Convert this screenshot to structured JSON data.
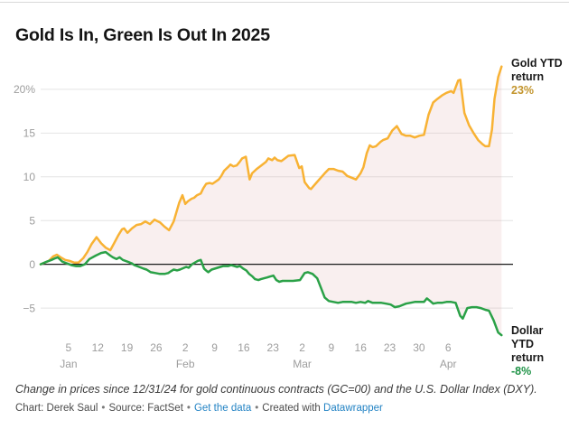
{
  "title": "Gold Is In, Green Is Out In 2025",
  "notes": "Change in prices since 12/31/24 for gold continuous contracts (GC=00) and the U.S. Dollar Index (DXY).",
  "byline": {
    "chart_credit": "Chart: Derek Saul",
    "source_credit": "Source: FactSet",
    "data_link": "Get the data",
    "created_with": "Created with",
    "tool_link": "Datawrapper",
    "separator": "•",
    "link_color": "#2383c4"
  },
  "chart_data": {
    "type": "line",
    "title": "Gold Is In, Green Is Out In 2025",
    "x_unit": "days since 12/31/24",
    "xlim": [
      0,
      112.6
    ],
    "ylim": [
      -8.4,
      23.4
    ],
    "grid": true,
    "colors": {
      "grid": "#e4e4e4",
      "zero_line": "#1a1a1a",
      "axis_text": "#9d9d9d",
      "fill_between": "rgba(221,164,164,0.18)"
    },
    "y_ticks": [
      {
        "v": 20,
        "label": "20%"
      },
      {
        "v": 15,
        "label": "15"
      },
      {
        "v": 10,
        "label": "10"
      },
      {
        "v": 5,
        "label": "5"
      },
      {
        "v": 0,
        "label": "0"
      },
      {
        "v": -5,
        "label": "−5"
      }
    ],
    "x_ticks": [
      {
        "d": 6.7,
        "day": "5",
        "month": "Jan"
      },
      {
        "d": 13.7,
        "day": "12"
      },
      {
        "d": 20.7,
        "day": "19"
      },
      {
        "d": 27.7,
        "day": "26"
      },
      {
        "d": 34.7,
        "day": "2",
        "month": "Feb"
      },
      {
        "d": 41.7,
        "day": "9"
      },
      {
        "d": 48.7,
        "day": "16"
      },
      {
        "d": 55.7,
        "day": "23"
      },
      {
        "d": 62.7,
        "day": "2",
        "month": "Mar"
      },
      {
        "d": 69.7,
        "day": "9"
      },
      {
        "d": 76.7,
        "day": "16"
      },
      {
        "d": 83.7,
        "day": "23"
      },
      {
        "d": 90.7,
        "day": "30"
      },
      {
        "d": 97.7,
        "day": "6",
        "month": "Apr"
      }
    ],
    "series": [
      {
        "name": "Gold YTD return",
        "end_label": "23%",
        "color": "#F8B234",
        "label_color": "#C2942C",
        "points": [
          [
            0,
            0
          ],
          [
            2,
            0.4
          ],
          [
            3,
            0.9
          ],
          [
            3.9,
            1.1
          ],
          [
            4.8,
            0.8
          ],
          [
            5.9,
            0.5
          ],
          [
            6.9,
            0.4
          ],
          [
            8,
            0.2
          ],
          [
            9.1,
            0.2
          ],
          [
            10.2,
            0.7
          ],
          [
            11.2,
            1.4
          ],
          [
            12.2,
            2.3
          ],
          [
            13.4,
            3.1
          ],
          [
            14.5,
            2.4
          ],
          [
            15.6,
            1.9
          ],
          [
            16.7,
            1.6
          ],
          [
            17.6,
            2.4
          ],
          [
            18.6,
            3.3
          ],
          [
            19.5,
            4
          ],
          [
            20,
            4.1
          ],
          [
            20.8,
            3.6
          ],
          [
            21.9,
            4.1
          ],
          [
            23,
            4.5
          ],
          [
            24.1,
            4.6
          ],
          [
            25.1,
            4.9
          ],
          [
            26.2,
            4.6
          ],
          [
            27.3,
            5.1
          ],
          [
            28.6,
            4.8
          ],
          [
            29.7,
            4.3
          ],
          [
            30.8,
            3.9
          ],
          [
            31.9,
            4.9
          ],
          [
            33.2,
            7
          ],
          [
            34,
            7.9
          ],
          [
            34.7,
            6.9
          ],
          [
            35.3,
            7.2
          ],
          [
            36.2,
            7.5
          ],
          [
            36.8,
            7.6
          ],
          [
            37.5,
            7.9
          ],
          [
            38.4,
            8.1
          ],
          [
            39,
            8.7
          ],
          [
            39.7,
            9.2
          ],
          [
            40.5,
            9.3
          ],
          [
            41.2,
            9.2
          ],
          [
            41.8,
            9.4
          ],
          [
            42.7,
            9.7
          ],
          [
            43.3,
            10.1
          ],
          [
            44,
            10.7
          ],
          [
            44.9,
            11.1
          ],
          [
            45.5,
            11.4
          ],
          [
            46.2,
            11.2
          ],
          [
            47,
            11.3
          ],
          [
            47.7,
            11.7
          ],
          [
            48.3,
            12.1
          ],
          [
            49.2,
            12.3
          ],
          [
            50.1,
            9.7
          ],
          [
            50.7,
            10.4
          ],
          [
            51.8,
            10.9
          ],
          [
            52.9,
            11.3
          ],
          [
            54,
            11.7
          ],
          [
            54.6,
            12.1
          ],
          [
            55.5,
            11.9
          ],
          [
            56.1,
            12.2
          ],
          [
            56.8,
            11.9
          ],
          [
            57.7,
            11.8
          ],
          [
            58.3,
            12
          ],
          [
            59.4,
            12.4
          ],
          [
            60.9,
            12.5
          ],
          [
            62,
            11
          ],
          [
            62.6,
            11.2
          ],
          [
            63.3,
            9.4
          ],
          [
            64.4,
            8.7
          ],
          [
            64.8,
            8.6
          ],
          [
            65.9,
            9.2
          ],
          [
            67,
            9.8
          ],
          [
            68.1,
            10.4
          ],
          [
            69.1,
            10.9
          ],
          [
            70.2,
            10.9
          ],
          [
            71.3,
            10.7
          ],
          [
            72.4,
            10.6
          ],
          [
            73.5,
            10.1
          ],
          [
            74.6,
            9.9
          ],
          [
            75.6,
            9.7
          ],
          [
            76.7,
            10.4
          ],
          [
            77.4,
            11.1
          ],
          [
            78.2,
            12.7
          ],
          [
            78.9,
            13.6
          ],
          [
            79.6,
            13.4
          ],
          [
            80.4,
            13.5
          ],
          [
            81.5,
            14
          ],
          [
            82.1,
            14.2
          ],
          [
            83.2,
            14.4
          ],
          [
            84.3,
            15.3
          ],
          [
            85.4,
            15.8
          ],
          [
            86.5,
            14.9
          ],
          [
            87.6,
            14.7
          ],
          [
            88.6,
            14.7
          ],
          [
            89.7,
            14.5
          ],
          [
            90.8,
            14.7
          ],
          [
            91.9,
            14.8
          ],
          [
            93,
            17.1
          ],
          [
            94.1,
            18.5
          ],
          [
            95.1,
            18.9
          ],
          [
            96.2,
            19.3
          ],
          [
            97.3,
            19.6
          ],
          [
            98.4,
            19.8
          ],
          [
            99,
            19.6
          ],
          [
            100.1,
            21
          ],
          [
            100.6,
            21.1
          ],
          [
            101.6,
            17.3
          ],
          [
            102.7,
            15.9
          ],
          [
            103.8,
            15
          ],
          [
            104.9,
            14.2
          ],
          [
            106,
            13.7
          ],
          [
            106.6,
            13.5
          ],
          [
            107.5,
            13.5
          ],
          [
            108.2,
            15.4
          ],
          [
            108.8,
            18.9
          ],
          [
            109.7,
            21.4
          ],
          [
            110.5,
            22.6
          ]
        ]
      },
      {
        "name": "Dollar YTD return",
        "end_label": "-8%",
        "color": "#2AA147",
        "label_color": "#1F9347",
        "points": [
          [
            0,
            0
          ],
          [
            1.5,
            0.3
          ],
          [
            2.6,
            0.5
          ],
          [
            3.5,
            0.7
          ],
          [
            4.1,
            0.8
          ],
          [
            5.2,
            0.3
          ],
          [
            6.3,
            0.1
          ],
          [
            7.4,
            -0.1
          ],
          [
            8.5,
            -0.2
          ],
          [
            9.5,
            -0.2
          ],
          [
            10.6,
            0
          ],
          [
            11.7,
            0.6
          ],
          [
            13.2,
            1
          ],
          [
            14.5,
            1.3
          ],
          [
            15.6,
            1.4
          ],
          [
            16.7,
            1
          ],
          [
            17.3,
            0.8
          ],
          [
            18.2,
            0.6
          ],
          [
            18.9,
            0.8
          ],
          [
            19.7,
            0.5
          ],
          [
            20.8,
            0.3
          ],
          [
            21.9,
            0.1
          ],
          [
            22.5,
            -0.1
          ],
          [
            23.6,
            -0.3
          ],
          [
            24.7,
            -0.5
          ],
          [
            25.4,
            -0.6
          ],
          [
            26.4,
            -0.9
          ],
          [
            27.5,
            -1
          ],
          [
            28.6,
            -1.1
          ],
          [
            29.7,
            -1.1
          ],
          [
            30.6,
            -1
          ],
          [
            31.2,
            -0.8
          ],
          [
            31.9,
            -0.6
          ],
          [
            32.7,
            -0.7
          ],
          [
            33.4,
            -0.6
          ],
          [
            34.9,
            -0.3
          ],
          [
            35.5,
            -0.4
          ],
          [
            36.3,
            0
          ],
          [
            37,
            0.2
          ],
          [
            37.7,
            0.4
          ],
          [
            38.4,
            0.5
          ],
          [
            39.2,
            -0.5
          ],
          [
            39.9,
            -0.8
          ],
          [
            40.2,
            -0.9
          ],
          [
            41,
            -0.6
          ],
          [
            41.7,
            -0.5
          ],
          [
            42.4,
            -0.4
          ],
          [
            43.1,
            -0.3
          ],
          [
            43.8,
            -0.2
          ],
          [
            45,
            -0.2
          ],
          [
            45.7,
            -0.1
          ],
          [
            46.4,
            -0.2
          ],
          [
            47.1,
            -0.3
          ],
          [
            47.8,
            -0.2
          ],
          [
            48.6,
            -0.5
          ],
          [
            49.3,
            -0.7
          ],
          [
            50,
            -1.1
          ],
          [
            50.8,
            -1.4
          ],
          [
            51.4,
            -1.7
          ],
          [
            52.2,
            -1.8
          ],
          [
            52.8,
            -1.7
          ],
          [
            53.6,
            -1.6
          ],
          [
            54.3,
            -1.5
          ],
          [
            55,
            -1.4
          ],
          [
            55.8,
            -1.3
          ],
          [
            56.5,
            -1.8
          ],
          [
            57.2,
            -2
          ],
          [
            58,
            -1.9
          ],
          [
            59.4,
            -1.9
          ],
          [
            60.5,
            -1.9
          ],
          [
            62.2,
            -1.8
          ],
          [
            63.3,
            -1
          ],
          [
            64.1,
            -0.9
          ],
          [
            65.2,
            -1.1
          ],
          [
            66.3,
            -1.6
          ],
          [
            67.3,
            -2.8
          ],
          [
            68.1,
            -3.8
          ],
          [
            69.1,
            -4.2
          ],
          [
            70.2,
            -4.3
          ],
          [
            71.3,
            -4.4
          ],
          [
            72.4,
            -4.3
          ],
          [
            73.5,
            -4.3
          ],
          [
            74.6,
            -4.3
          ],
          [
            75.6,
            -4.4
          ],
          [
            76.7,
            -4.3
          ],
          [
            77.8,
            -4.4
          ],
          [
            78.5,
            -4.2
          ],
          [
            79.6,
            -4.4
          ],
          [
            80.6,
            -4.4
          ],
          [
            81.7,
            -4.4
          ],
          [
            82.8,
            -4.5
          ],
          [
            83.9,
            -4.6
          ],
          [
            84.9,
            -4.9
          ],
          [
            86,
            -4.8
          ],
          [
            87.6,
            -4.5
          ],
          [
            88.6,
            -4.4
          ],
          [
            89.7,
            -4.3
          ],
          [
            90.8,
            -4.3
          ],
          [
            91.9,
            -4.3
          ],
          [
            92.6,
            -3.9
          ],
          [
            93.4,
            -4.2
          ],
          [
            94.1,
            -4.5
          ],
          [
            95.1,
            -4.4
          ],
          [
            96.2,
            -4.4
          ],
          [
            97.3,
            -4.3
          ],
          [
            98.4,
            -4.3
          ],
          [
            99.5,
            -4.4
          ],
          [
            100.6,
            -5.9
          ],
          [
            101.2,
            -6.2
          ],
          [
            102.3,
            -5
          ],
          [
            103.4,
            -4.9
          ],
          [
            104.5,
            -4.9
          ],
          [
            105.5,
            -5
          ],
          [
            106.6,
            -5.2
          ],
          [
            107.5,
            -5.3
          ],
          [
            108.6,
            -6.4
          ],
          [
            109.7,
            -7.8
          ],
          [
            110.5,
            -8.1
          ]
        ]
      }
    ]
  }
}
